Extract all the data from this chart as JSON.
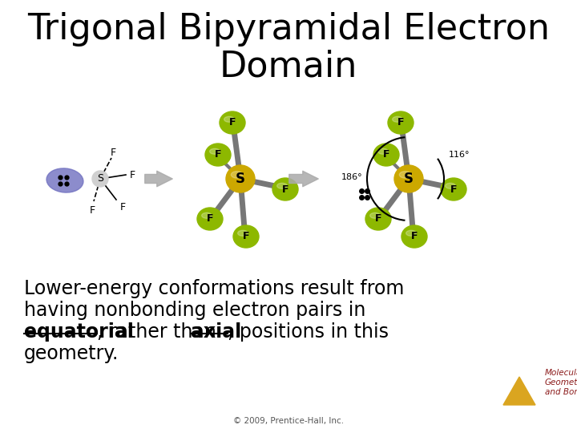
{
  "title_line1": "Trigonal Bipyramidal Electron",
  "title_line2": "Domain",
  "title_fontsize": 32,
  "title_color": "#000000",
  "background_color": "#ffffff",
  "body_text_line1": "Lower-energy conformations result from",
  "body_text_line2": "having nonbonding electron pairs in",
  "body_text_line3_pre": ", rather than ",
  "body_text_line3_post": ", positions in this",
  "body_text_equatorial": "equatorial",
  "body_text_axial": "axial",
  "body_text_line4": "geometry.",
  "body_fontsize": 17,
  "watermark_line1": "Molecular",
  "watermark_line2": "Geometries",
  "watermark_line3": "and Bonding",
  "watermark_color": "#8B1A1A",
  "copyright_text": "© 2009, Prentice-Hall, Inc.",
  "copyright_color": "#555555",
  "atom_S_color": "#CCA800",
  "atom_F_color": "#8DB800",
  "atom_lone_color": "#7070C0",
  "bond_color": "#777777",
  "arrow_color": "#999999",
  "angle_color": "#000000",
  "tri_color": "#DAA520"
}
